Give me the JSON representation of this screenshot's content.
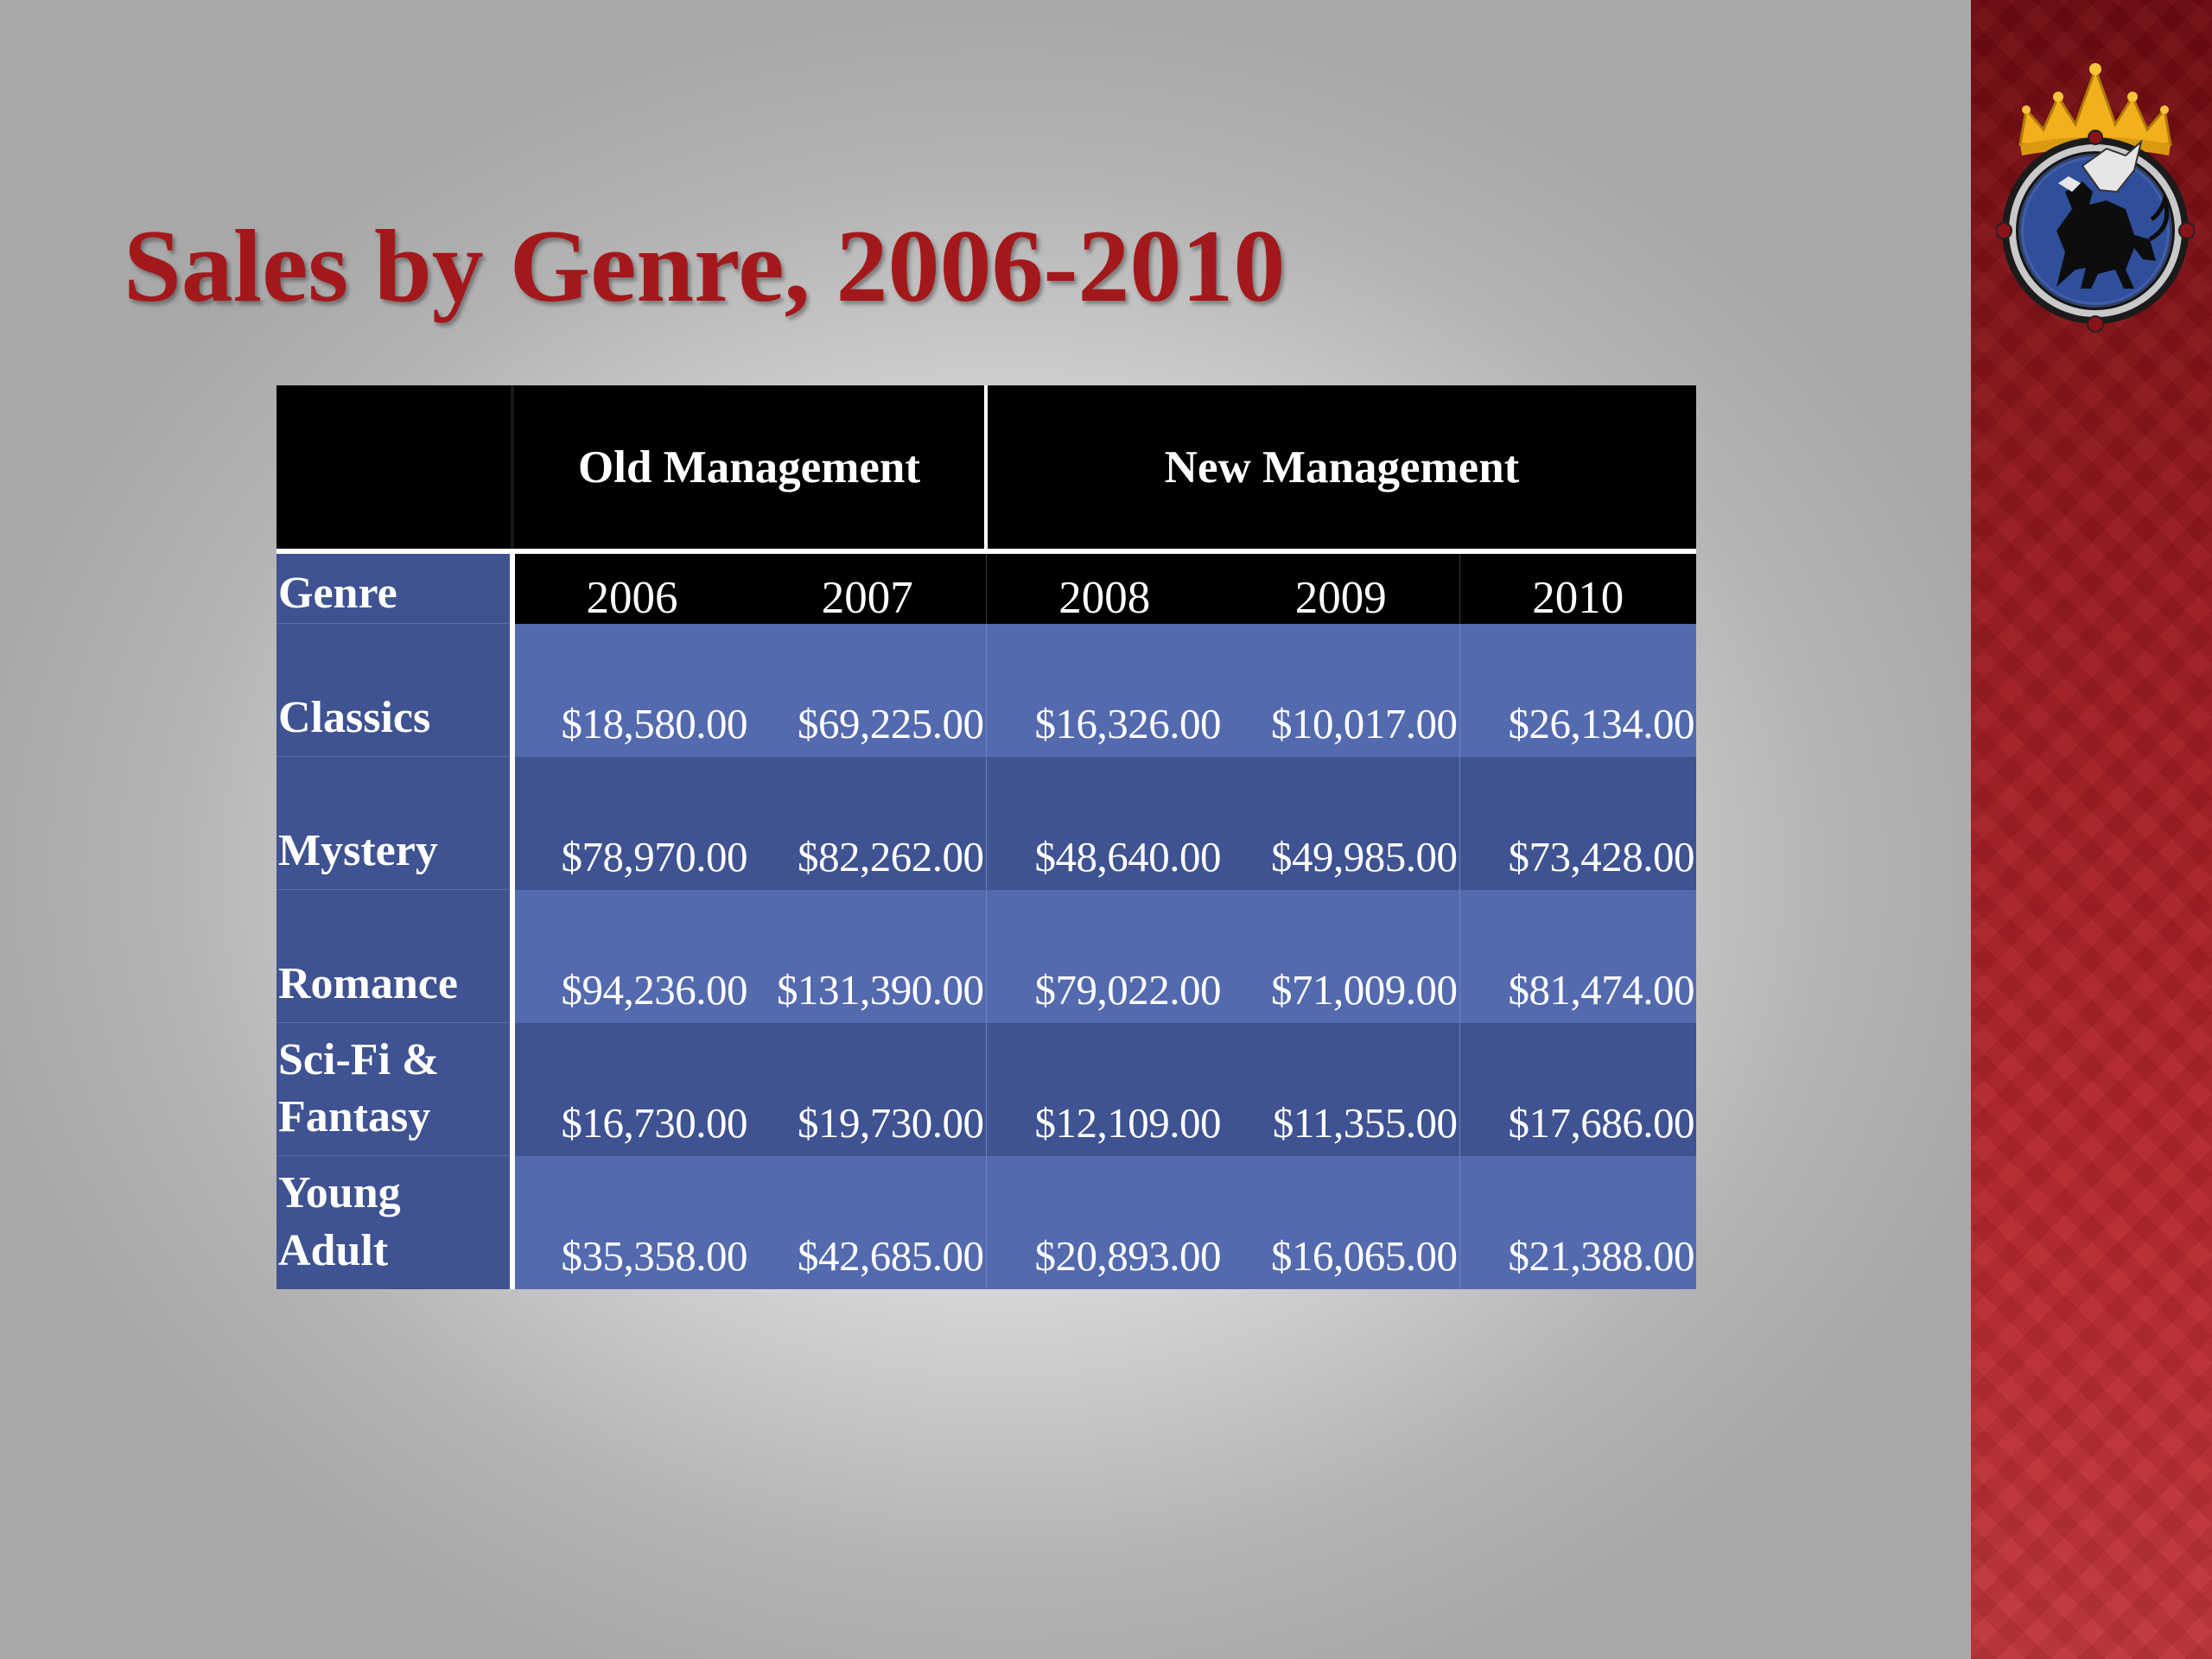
{
  "slide": {
    "title": "Sales by Genre, 2006-2010"
  },
  "colors": {
    "title": "#a3181b",
    "table_header_bg": "#000000",
    "row_light": "#546aaf",
    "row_dark": "#3f5291",
    "side_band": "#9a1a20"
  },
  "table": {
    "group_headers": [
      "Old Management",
      "New Management"
    ],
    "genre_header": "Genre",
    "years": [
      "2006",
      "2007",
      "2008",
      "2009",
      "2010"
    ],
    "rows": [
      {
        "genre_lines": [
          "Classics"
        ],
        "values": [
          "$18,580.00",
          "$69,225.00",
          "$16,326.00",
          "$10,017.00",
          "$26,134.00"
        ]
      },
      {
        "genre_lines": [
          "Mystery"
        ],
        "values": [
          "$78,970.00",
          "$82,262.00",
          "$48,640.00",
          "$49,985.00",
          "$73,428.00"
        ]
      },
      {
        "genre_lines": [
          "Romance"
        ],
        "values": [
          "$94,236.00",
          "$131,390.00",
          "$79,022.00",
          "$71,009.00",
          "$81,474.00"
        ]
      },
      {
        "genre_lines": [
          "Sci-Fi &",
          "Fantasy"
        ],
        "values": [
          "$16,730.00",
          "$19,730.00",
          "$12,109.00",
          "$11,355.00",
          "$17,686.00"
        ]
      },
      {
        "genre_lines": [
          "Young",
          "Adult"
        ],
        "values": [
          "$35,358.00",
          "$42,685.00",
          "$20,893.00",
          "$16,065.00",
          "$21,388.00"
        ]
      }
    ]
  },
  "logo": {
    "icon": "griffin-crest-icon"
  }
}
